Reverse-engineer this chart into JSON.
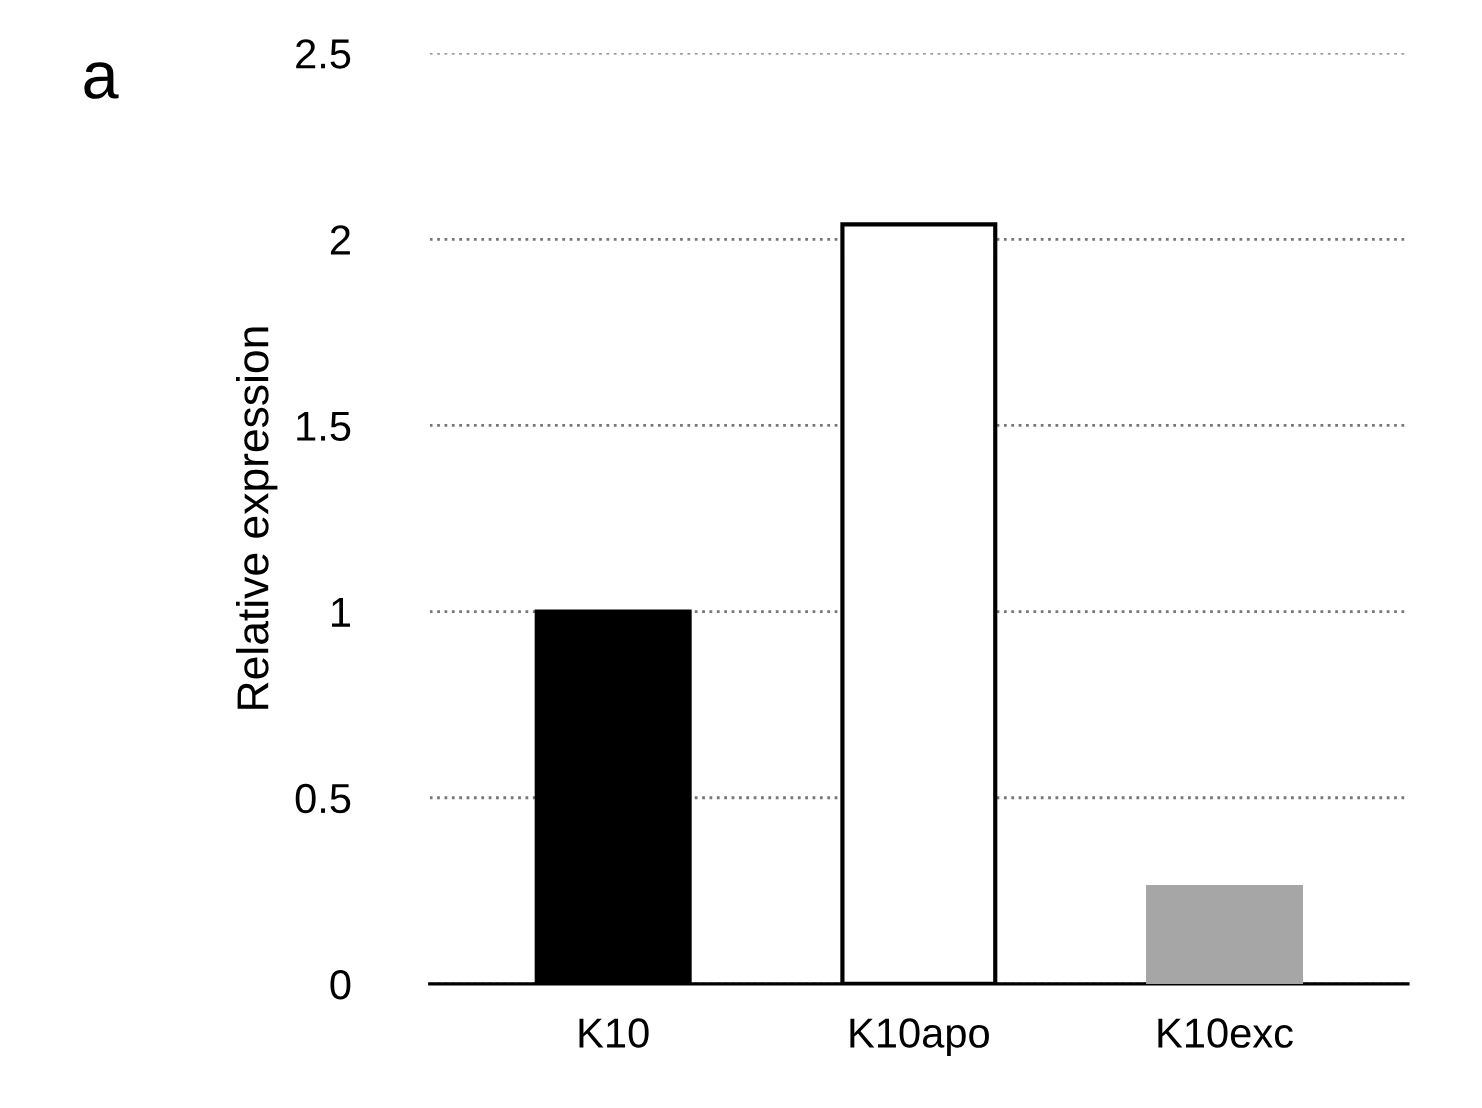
{
  "chart_data": {
    "type": "bar",
    "ylabel": "Relative expression",
    "categories": [
      "K10",
      "K10apo",
      "K10exc"
    ],
    "values": [
      1.0,
      2.04,
      0.26
    ],
    "colors": [
      "#000000",
      "#ffffff",
      "#a6a6a6"
    ],
    "ylim": [
      0,
      2.5
    ],
    "yticks": [
      0,
      {
        "value": 0.5,
        "label": "0.5"
      },
      1,
      {
        "value": 1.5,
        "label": "1.5"
      },
      2,
      {
        "value": 2.5,
        "label": "2.5"
      }
    ],
    "grid": "y",
    "annotations": [
      "a"
    ]
  }
}
